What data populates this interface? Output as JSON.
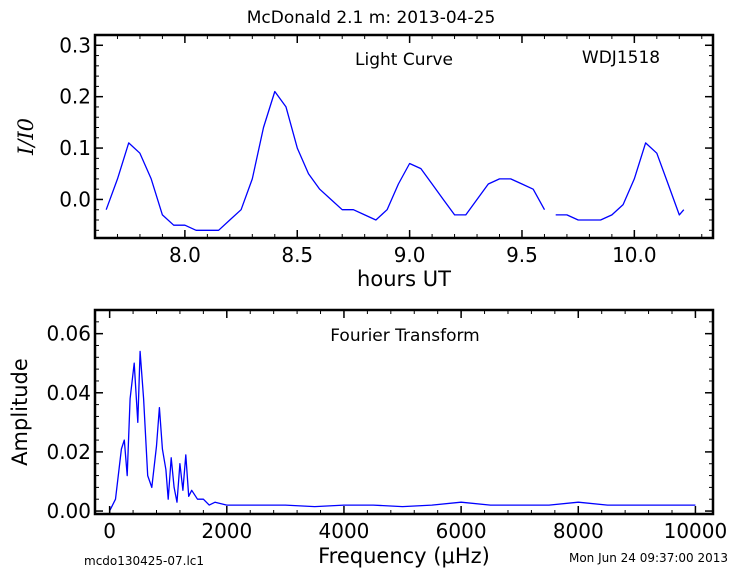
{
  "figure": {
    "title": "McDonald 2.1 m:  2013-04-25",
    "footer_left": "mcdo130425-07.lc1",
    "footer_right": "Mon Jun 24 09:37:00 2013"
  },
  "chart_data": [
    {
      "type": "line",
      "title": "",
      "annotations": [
        "Light Curve",
        "WDJ1518"
      ],
      "xlabel": "hours UT",
      "ylabel": "I/I0",
      "xlim": [
        7.6,
        10.35
      ],
      "ylim": [
        -0.075,
        0.32
      ],
      "xticks": [
        8.0,
        8.5,
        9.0,
        9.5,
        10.0
      ],
      "xtick_labels": [
        "8.0",
        "8.5",
        "9.0",
        "9.5",
        "10.0"
      ],
      "yticks": [
        0.0,
        0.1,
        0.2,
        0.3
      ],
      "ytick_labels": [
        "0.0",
        "0.1",
        "0.2",
        "0.3"
      ],
      "grid": false,
      "line_color": "#0000ff",
      "series": [
        {
          "x": [
            7.65,
            7.7,
            7.75,
            7.8,
            7.85,
            7.9,
            7.95,
            8.0,
            8.05,
            8.1,
            8.15,
            8.2,
            8.25,
            8.3,
            8.35,
            8.4,
            8.45,
            8.5,
            8.55,
            8.6,
            8.65,
            8.7,
            8.75,
            8.8,
            8.85,
            8.9,
            8.95,
            9.0,
            9.05,
            9.1,
            9.15,
            9.2,
            9.25,
            9.3,
            9.35,
            9.4,
            9.45,
            9.5,
            9.55,
            9.6
          ],
          "y": [
            -0.02,
            0.04,
            0.11,
            0.09,
            0.04,
            -0.03,
            -0.05,
            -0.05,
            -0.06,
            -0.06,
            -0.06,
            -0.04,
            -0.02,
            0.04,
            0.14,
            0.21,
            0.18,
            0.1,
            0.05,
            0.02,
            0.0,
            -0.02,
            -0.02,
            -0.03,
            -0.04,
            -0.02,
            0.03,
            0.07,
            0.06,
            0.03,
            0.0,
            -0.03,
            -0.03,
            0.0,
            0.03,
            0.04,
            0.04,
            0.03,
            0.02,
            -0.02
          ]
        },
        {
          "x": [
            9.65,
            9.7,
            9.75,
            9.8,
            9.85,
            9.9,
            9.95,
            10.0,
            10.05,
            10.1,
            10.15,
            10.2,
            10.22
          ],
          "y": [
            -0.03,
            -0.03,
            -0.04,
            -0.04,
            -0.04,
            -0.03,
            -0.01,
            0.04,
            0.11,
            0.09,
            0.03,
            -0.03,
            -0.02
          ]
        }
      ]
    },
    {
      "type": "line",
      "title": "",
      "annotations": [
        "Fourier Transform"
      ],
      "xlabel": "Frequency (μHz)",
      "ylabel": "Amplitude",
      "xlim": [
        -250,
        10300
      ],
      "ylim": [
        -0.001,
        0.068
      ],
      "xticks": [
        0,
        2000,
        4000,
        6000,
        8000,
        10000
      ],
      "xtick_labels": [
        "0",
        "2000",
        "4000",
        "6000",
        "8000",
        "10000"
      ],
      "yticks": [
        0.0,
        0.02,
        0.04,
        0.06
      ],
      "ytick_labels": [
        "0.00",
        "0.02",
        "0.04",
        "0.06"
      ],
      "grid": false,
      "line_color": "#0000ff",
      "series": [
        {
          "x": [
            0,
            100,
            200,
            250,
            300,
            350,
            420,
            480,
            520,
            580,
            650,
            720,
            800,
            850,
            900,
            960,
            1000,
            1050,
            1100,
            1150,
            1200,
            1250,
            1300,
            1350,
            1400,
            1500,
            1600,
            1700,
            1800,
            2000,
            2500,
            3000,
            3500,
            4000,
            4500,
            5000,
            5500,
            6000,
            6500,
            7000,
            7500,
            8000,
            8500,
            9000,
            9500,
            10000
          ],
          "y": [
            0.0,
            0.004,
            0.021,
            0.024,
            0.012,
            0.038,
            0.05,
            0.03,
            0.054,
            0.038,
            0.012,
            0.008,
            0.022,
            0.035,
            0.021,
            0.014,
            0.004,
            0.018,
            0.008,
            0.003,
            0.016,
            0.007,
            0.019,
            0.005,
            0.007,
            0.004,
            0.004,
            0.002,
            0.003,
            0.002,
            0.002,
            0.002,
            0.0015,
            0.002,
            0.002,
            0.0015,
            0.002,
            0.003,
            0.002,
            0.002,
            0.002,
            0.003,
            0.002,
            0.002,
            0.002,
            0.002
          ]
        }
      ]
    }
  ]
}
